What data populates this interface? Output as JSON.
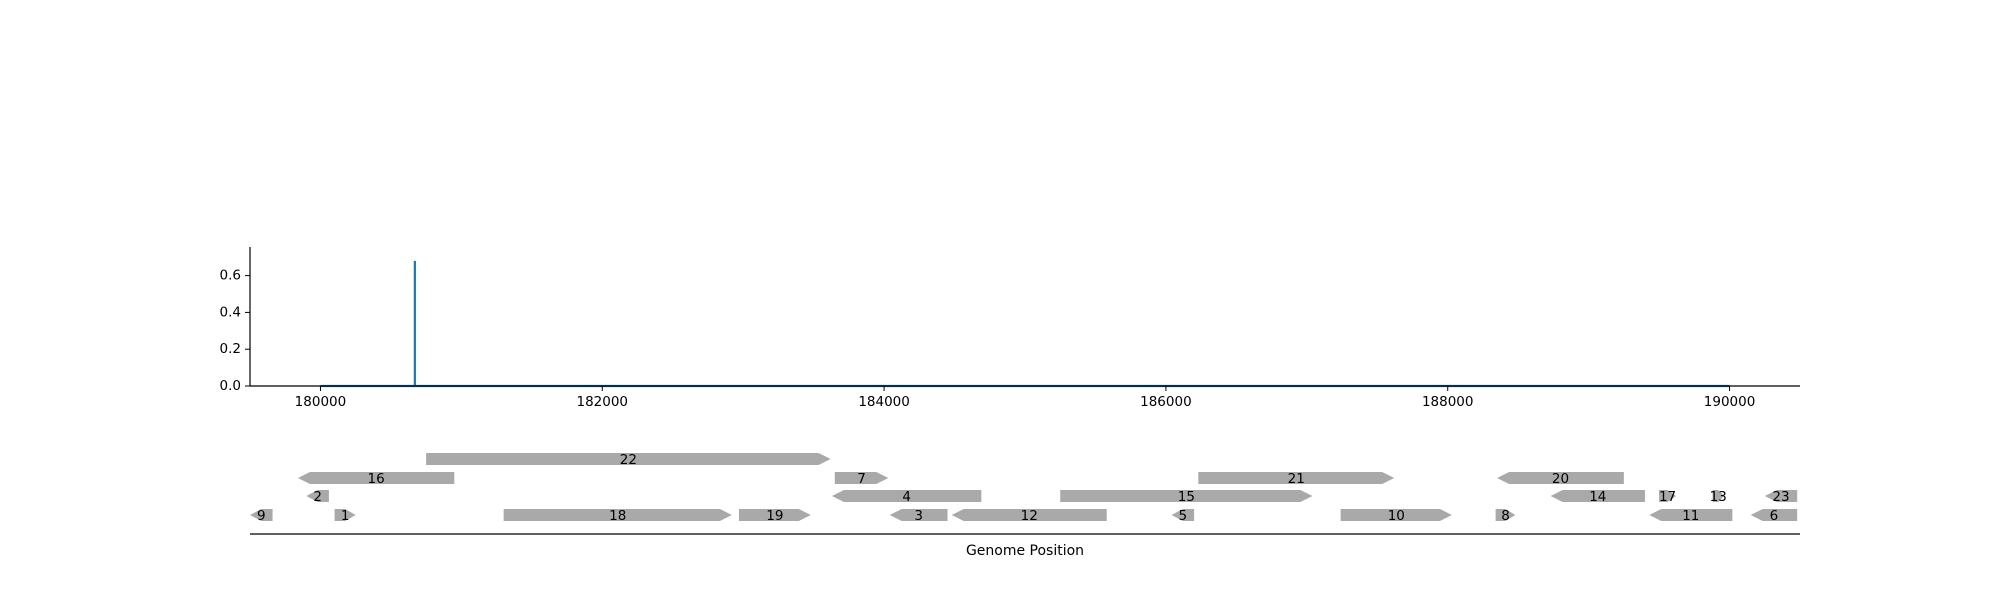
{
  "chart_data": [
    {
      "type": "line",
      "title": "",
      "xlabel": "",
      "ylabel": "",
      "xlim": [
        179500,
        190500
      ],
      "ylim": [
        0,
        0.75
      ],
      "x_ticks": [
        180000,
        182000,
        184000,
        186000,
        188000,
        190000
      ],
      "y_ticks": [
        0.0,
        0.2,
        0.4,
        0.6
      ],
      "x_tick_labels": [
        "180000",
        "182000",
        "184000",
        "186000",
        "188000",
        "190000"
      ],
      "y_tick_labels": [
        "0.0",
        "0.2",
        "0.4",
        "0.6"
      ],
      "grid": false,
      "color": "#1f77b4",
      "series": [
        {
          "x": [
            180000,
            180670,
            180670,
            180670,
            190000
          ],
          "y": [
            0,
            0,
            0.68,
            0,
            0
          ]
        }
      ]
    },
    {
      "type": "gene-track",
      "xlabel": "Genome Position",
      "xlim": [
        179500,
        190500
      ],
      "color": "#a9a9a9",
      "genes": [
        {
          "label": "22",
          "start": 180750,
          "end": 183620,
          "strand": "+",
          "row": 3
        },
        {
          "label": "16",
          "start": 179840,
          "end": 180950,
          "strand": "-",
          "row": 2
        },
        {
          "label": "7",
          "start": 183650,
          "end": 184030,
          "strand": "+",
          "row": 2
        },
        {
          "label": "21",
          "start": 186230,
          "end": 187620,
          "strand": "+",
          "row": 2
        },
        {
          "label": "20",
          "start": 188350,
          "end": 189250,
          "strand": "-",
          "row": 2
        },
        {
          "label": "2",
          "start": 179900,
          "end": 180060,
          "strand": "-",
          "row": 1
        },
        {
          "label": "4",
          "start": 183630,
          "end": 184690,
          "strand": "-",
          "row": 1
        },
        {
          "label": "15",
          "start": 185250,
          "end": 187040,
          "strand": "+",
          "row": 1
        },
        {
          "label": "14",
          "start": 188730,
          "end": 189400,
          "strand": "-",
          "row": 1
        },
        {
          "label": "17",
          "start": 189500,
          "end": 189620,
          "strand": "+",
          "row": 1
        },
        {
          "label": "13",
          "start": 189880,
          "end": 189960,
          "strand": "+",
          "row": 1
        },
        {
          "label": "23",
          "start": 190250,
          "end": 190480,
          "strand": "-",
          "row": 1
        },
        {
          "label": "9",
          "start": 179500,
          "end": 179660,
          "strand": "-",
          "row": 0
        },
        {
          "label": "1",
          "start": 180100,
          "end": 180250,
          "strand": "+",
          "row": 0
        },
        {
          "label": "18",
          "start": 181300,
          "end": 182920,
          "strand": "+",
          "row": 0
        },
        {
          "label": "19",
          "start": 182970,
          "end": 183480,
          "strand": "+",
          "row": 0
        },
        {
          "label": "3",
          "start": 184040,
          "end": 184450,
          "strand": "-",
          "row": 0
        },
        {
          "label": "12",
          "start": 184480,
          "end": 185580,
          "strand": "-",
          "row": 0
        },
        {
          "label": "5",
          "start": 186040,
          "end": 186200,
          "strand": "-",
          "row": 0
        },
        {
          "label": "10",
          "start": 187240,
          "end": 188030,
          "strand": "+",
          "row": 0
        },
        {
          "label": "8",
          "start": 188340,
          "end": 188480,
          "strand": "+",
          "row": 0
        },
        {
          "label": "11",
          "start": 189430,
          "end": 190020,
          "strand": "-",
          "row": 0
        },
        {
          "label": "6",
          "start": 190150,
          "end": 190480,
          "strand": "-",
          "row": 0
        }
      ]
    }
  ]
}
